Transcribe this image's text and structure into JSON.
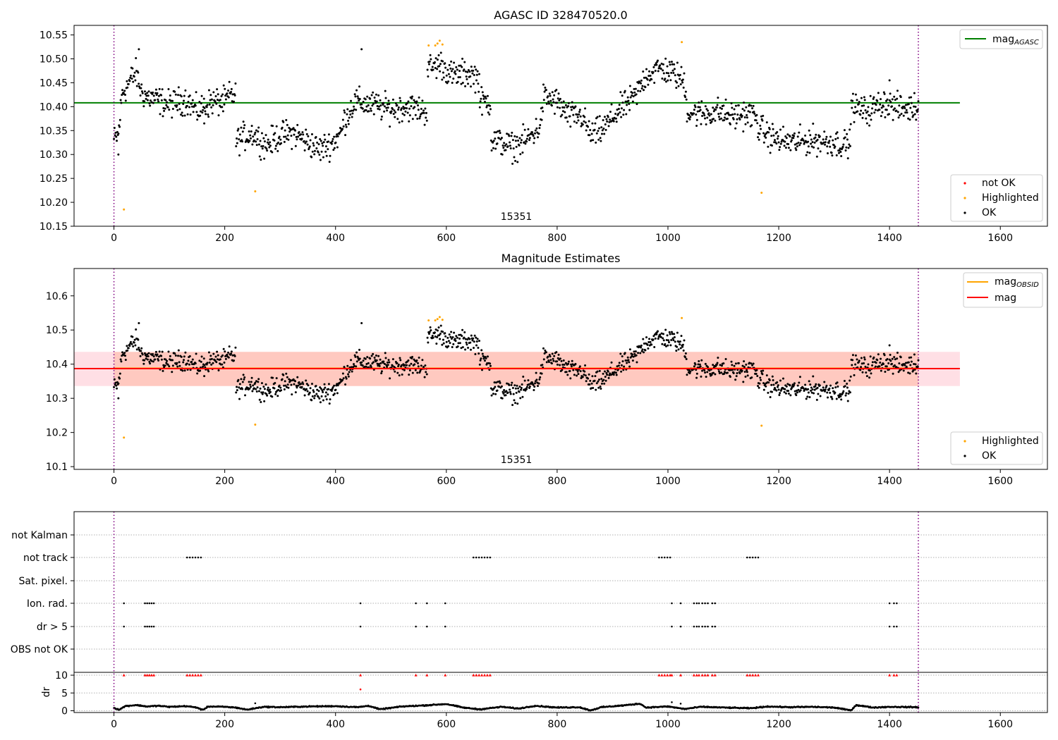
{
  "chart_data": [
    {
      "type": "scatter",
      "title": "AGASC ID 328470520.0",
      "xlim": [
        -72,
        1685
      ],
      "ylim": [
        10.15,
        10.57
      ],
      "x_ticks": [
        0,
        200,
        400,
        600,
        800,
        1000,
        1200,
        1400,
        1600
      ],
      "y_ticks": [
        10.15,
        10.2,
        10.25,
        10.3,
        10.35,
        10.4,
        10.45,
        10.5,
        10.55
      ],
      "y_tick_labels": [
        "10.15",
        "10.20",
        "10.25",
        "10.30",
        "10.35",
        "10.40",
        "10.45",
        "10.50",
        "10.55"
      ],
      "obsid_label": "15351",
      "obsid_label_x": 725,
      "obsid_bounds": [
        0,
        1452
      ],
      "reference_lines": [
        {
          "name": "mag_AGASC",
          "value": 10.408,
          "color": "#008000",
          "x_range": [
            -72,
            1527
          ]
        }
      ],
      "legend_lines": {
        "location": "upper right",
        "entries": [
          {
            "label": "mag",
            "sub": "AGASC",
            "color": "#008000"
          }
        ]
      },
      "legend_points": {
        "location": "lower right",
        "entries": [
          {
            "label": "not OK",
            "color": "#ff0000"
          },
          {
            "label": "Highlighted",
            "color": "#ffa500"
          },
          {
            "label": "OK",
            "color": "#000000"
          }
        ]
      },
      "series": [
        {
          "name": "OK",
          "color": "#000000",
          "segments": [
            [
              0,
              10.33
            ],
            [
              8,
              10.34
            ],
            [
              15,
              10.43
            ],
            [
              22,
              10.44
            ],
            [
              32,
              10.46
            ],
            [
              40,
              10.47
            ],
            [
              50,
              10.43
            ],
            [
              60,
              10.42
            ],
            [
              75,
              10.415
            ],
            [
              100,
              10.405
            ],
            [
              130,
              10.415
            ],
            [
              150,
              10.39
            ],
            [
              175,
              10.41
            ],
            [
              200,
              10.41
            ],
            [
              210,
              10.425
            ],
            [
              220,
              10.42
            ],
            [
              222,
              10.33
            ],
            [
              250,
              10.345
            ],
            [
              275,
              10.32
            ],
            [
              300,
              10.34
            ],
            [
              325,
              10.345
            ],
            [
              345,
              10.33
            ],
            [
              370,
              10.31
            ],
            [
              395,
              10.325
            ],
            [
              410,
              10.345
            ],
            [
              415,
              10.37
            ],
            [
              435,
              10.41
            ],
            [
              460,
              10.405
            ],
            [
              500,
              10.395
            ],
            [
              530,
              10.4
            ],
            [
              565,
              10.39
            ],
            [
              567,
              10.48
            ],
            [
              590,
              10.49
            ],
            [
              610,
              10.465
            ],
            [
              640,
              10.47
            ],
            [
              660,
              10.46
            ],
            [
              662,
              10.41
            ],
            [
              680,
              10.41
            ],
            [
              683,
              10.33
            ],
            [
              700,
              10.325
            ],
            [
              720,
              10.315
            ],
            [
              745,
              10.33
            ],
            [
              770,
              10.36
            ],
            [
              775,
              10.42
            ],
            [
              800,
              10.41
            ],
            [
              820,
              10.38
            ],
            [
              845,
              10.38
            ],
            [
              860,
              10.34
            ],
            [
              880,
              10.35
            ],
            [
              910,
              10.39
            ],
            [
              940,
              10.42
            ],
            [
              960,
              10.465
            ],
            [
              985,
              10.48
            ],
            [
              1010,
              10.47
            ],
            [
              1030,
              10.45
            ],
            [
              1035,
              10.39
            ],
            [
              1060,
              10.385
            ],
            [
              1090,
              10.39
            ],
            [
              1115,
              10.38
            ],
            [
              1140,
              10.385
            ],
            [
              1160,
              10.38
            ],
            [
              1162,
              10.36
            ],
            [
              1180,
              10.34
            ],
            [
              1200,
              10.33
            ],
            [
              1230,
              10.325
            ],
            [
              1260,
              10.33
            ],
            [
              1300,
              10.325
            ],
            [
              1330,
              10.32
            ],
            [
              1332,
              10.4
            ],
            [
              1360,
              10.39
            ],
            [
              1390,
              10.41
            ],
            [
              1420,
              10.395
            ],
            [
              1452,
              10.4
            ]
          ],
          "spread": 0.022,
          "count": 1430
        },
        {
          "name": "Highlighted",
          "color": "#ffa500",
          "points": [
            [
              18,
              10.185
            ],
            [
              255,
              10.223
            ],
            [
              568,
              10.528
            ],
            [
              580,
              10.528
            ],
            [
              584,
              10.532
            ],
            [
              588,
              10.538
            ],
            [
              593,
              10.53
            ],
            [
              1025,
              10.535
            ],
            [
              1169,
              10.22
            ]
          ]
        }
      ]
    },
    {
      "type": "scatter",
      "title": "Magnitude Estimates",
      "xlim": [
        -72,
        1685
      ],
      "ylim": [
        10.092,
        10.68
      ],
      "x_ticks": [
        0,
        200,
        400,
        600,
        800,
        1000,
        1200,
        1400,
        1600
      ],
      "y_ticks": [
        10.1,
        10.2,
        10.3,
        10.4,
        10.5,
        10.6
      ],
      "y_tick_labels": [
        "10.1",
        "10.2",
        "10.3",
        "10.4",
        "10.5",
        "10.6"
      ],
      "obsid_label": "15351",
      "obsid_label_x": 725,
      "obsid_bounds": [
        0,
        1452
      ],
      "reference_lines": [
        {
          "name": "mag",
          "value": 10.387,
          "color": "#ff0000",
          "x_range": [
            -72,
            1527
          ]
        },
        {
          "name": "mag_OBSID",
          "value": 10.388,
          "color": "#ffa500",
          "x_range": [
            0,
            1452
          ]
        }
      ],
      "bands": [
        {
          "name": "mag band",
          "range": [
            10.336,
            10.436
          ],
          "color": "#ffc0cb",
          "x_range": [
            -72,
            1527
          ]
        },
        {
          "name": "mag_OBSID band",
          "range": [
            10.336,
            10.436
          ],
          "color": "#ffa07a",
          "x_range": [
            0,
            1452
          ]
        }
      ],
      "legend_lines": {
        "location": "upper right",
        "entries": [
          {
            "label": "mag",
            "sub": "OBSID",
            "color": "#ffa500"
          },
          {
            "label": "mag",
            "sub": "",
            "color": "#ff0000"
          }
        ]
      },
      "legend_points": {
        "location": "lower right",
        "entries": [
          {
            "label": "Highlighted",
            "color": "#ffa500"
          },
          {
            "label": "OK",
            "color": "#000000"
          }
        ]
      },
      "series": [
        {
          "name": "OK",
          "color": "#000000",
          "same_as_panel": 0
        },
        {
          "name": "Highlighted",
          "color": "#ffa500",
          "same_as_panel": 0
        }
      ]
    },
    {
      "type": "scatter",
      "title": "",
      "xlim": [
        -72,
        1685
      ],
      "x_ticks": [
        0,
        200,
        400,
        600,
        800,
        1000,
        1200,
        1400,
        1600
      ],
      "flag_rows": [
        "not Kalman",
        "not track",
        "Sat. pixel.",
        "Ion. rad.",
        "dr > 5",
        "OBS not OK"
      ],
      "flags": {
        "not track": [
          132,
          137,
          142,
          147,
          152,
          157,
          649,
          654,
          659,
          664,
          669,
          674,
          679,
          984,
          989,
          994,
          999,
          1004,
          1143,
          1148,
          1153,
          1158,
          1163
        ],
        "Ion. rad.": [
          18,
          56,
          60,
          64,
          68,
          72,
          445,
          545,
          565,
          598,
          1007,
          1023,
          1047,
          1052,
          1056,
          1062,
          1067,
          1072,
          1080,
          1085,
          1400,
          1408,
          1413
        ],
        "dr > 5": [
          18,
          56,
          60,
          64,
          68,
          72,
          445,
          545,
          565,
          598,
          1007,
          1023,
          1047,
          1052,
          1056,
          1062,
          1067,
          1072,
          1080,
          1085,
          1400,
          1408,
          1413
        ]
      },
      "dr": {
        "ylabel": "dr",
        "ylim": [
          -0.5,
          10.8
        ],
        "y_ticks": [
          0,
          5,
          10
        ],
        "y_tick_labels": [
          "0",
          "5",
          "10"
        ],
        "capped_value": 10,
        "capped_color": "#ff0000",
        "capped_x": [
          18,
          56,
          60,
          64,
          68,
          72,
          132,
          137,
          142,
          147,
          152,
          157,
          445,
          545,
          565,
          598,
          649,
          654,
          659,
          664,
          669,
          674,
          679,
          984,
          989,
          994,
          999,
          1004,
          1007,
          1023,
          1047,
          1052,
          1056,
          1062,
          1067,
          1072,
          1080,
          1085,
          1143,
          1148,
          1153,
          1158,
          1163,
          1400,
          1408,
          1413
        ],
        "extra_points": [
          [
            445,
            6.0,
            "#ff0000"
          ],
          [
            255,
            2.1,
            "#000000"
          ],
          [
            1007,
            2.4,
            "#000000"
          ],
          [
            1023,
            2.0,
            "#000000"
          ]
        ],
        "baseline": [
          [
            0,
            0.8
          ],
          [
            10,
            0.3
          ],
          [
            20,
            1.3
          ],
          [
            40,
            1.6
          ],
          [
            60,
            1.2
          ],
          [
            80,
            1.4
          ],
          [
            100,
            1.1
          ],
          [
            130,
            1.3
          ],
          [
            150,
            0.9
          ],
          [
            160,
            0.2
          ],
          [
            170,
            1.2
          ],
          [
            200,
            1.1
          ],
          [
            220,
            0.9
          ],
          [
            240,
            0.3
          ],
          [
            270,
            1.1
          ],
          [
            300,
            1.0
          ],
          [
            350,
            1.2
          ],
          [
            400,
            1.3
          ],
          [
            440,
            1.0
          ],
          [
            460,
            1.4
          ],
          [
            480,
            0.4
          ],
          [
            520,
            1.2
          ],
          [
            560,
            1.5
          ],
          [
            600,
            1.9
          ],
          [
            630,
            0.9
          ],
          [
            660,
            0.4
          ],
          [
            700,
            1.1
          ],
          [
            730,
            0.6
          ],
          [
            760,
            1.4
          ],
          [
            800,
            0.9
          ],
          [
            840,
            1.0
          ],
          [
            860,
            0.1
          ],
          [
            880,
            1.0
          ],
          [
            920,
            1.5
          ],
          [
            950,
            2.0
          ],
          [
            960,
            0.9
          ],
          [
            1000,
            1.2
          ],
          [
            1030,
            0.5
          ],
          [
            1060,
            1.1
          ],
          [
            1100,
            0.9
          ],
          [
            1150,
            0.7
          ],
          [
            1180,
            1.2
          ],
          [
            1220,
            1.0
          ],
          [
            1260,
            1.1
          ],
          [
            1300,
            0.9
          ],
          [
            1330,
            0.1
          ],
          [
            1340,
            1.6
          ],
          [
            1370,
            0.9
          ],
          [
            1400,
            1.1
          ],
          [
            1452,
            1.0
          ]
        ],
        "count": 1453
      }
    }
  ]
}
